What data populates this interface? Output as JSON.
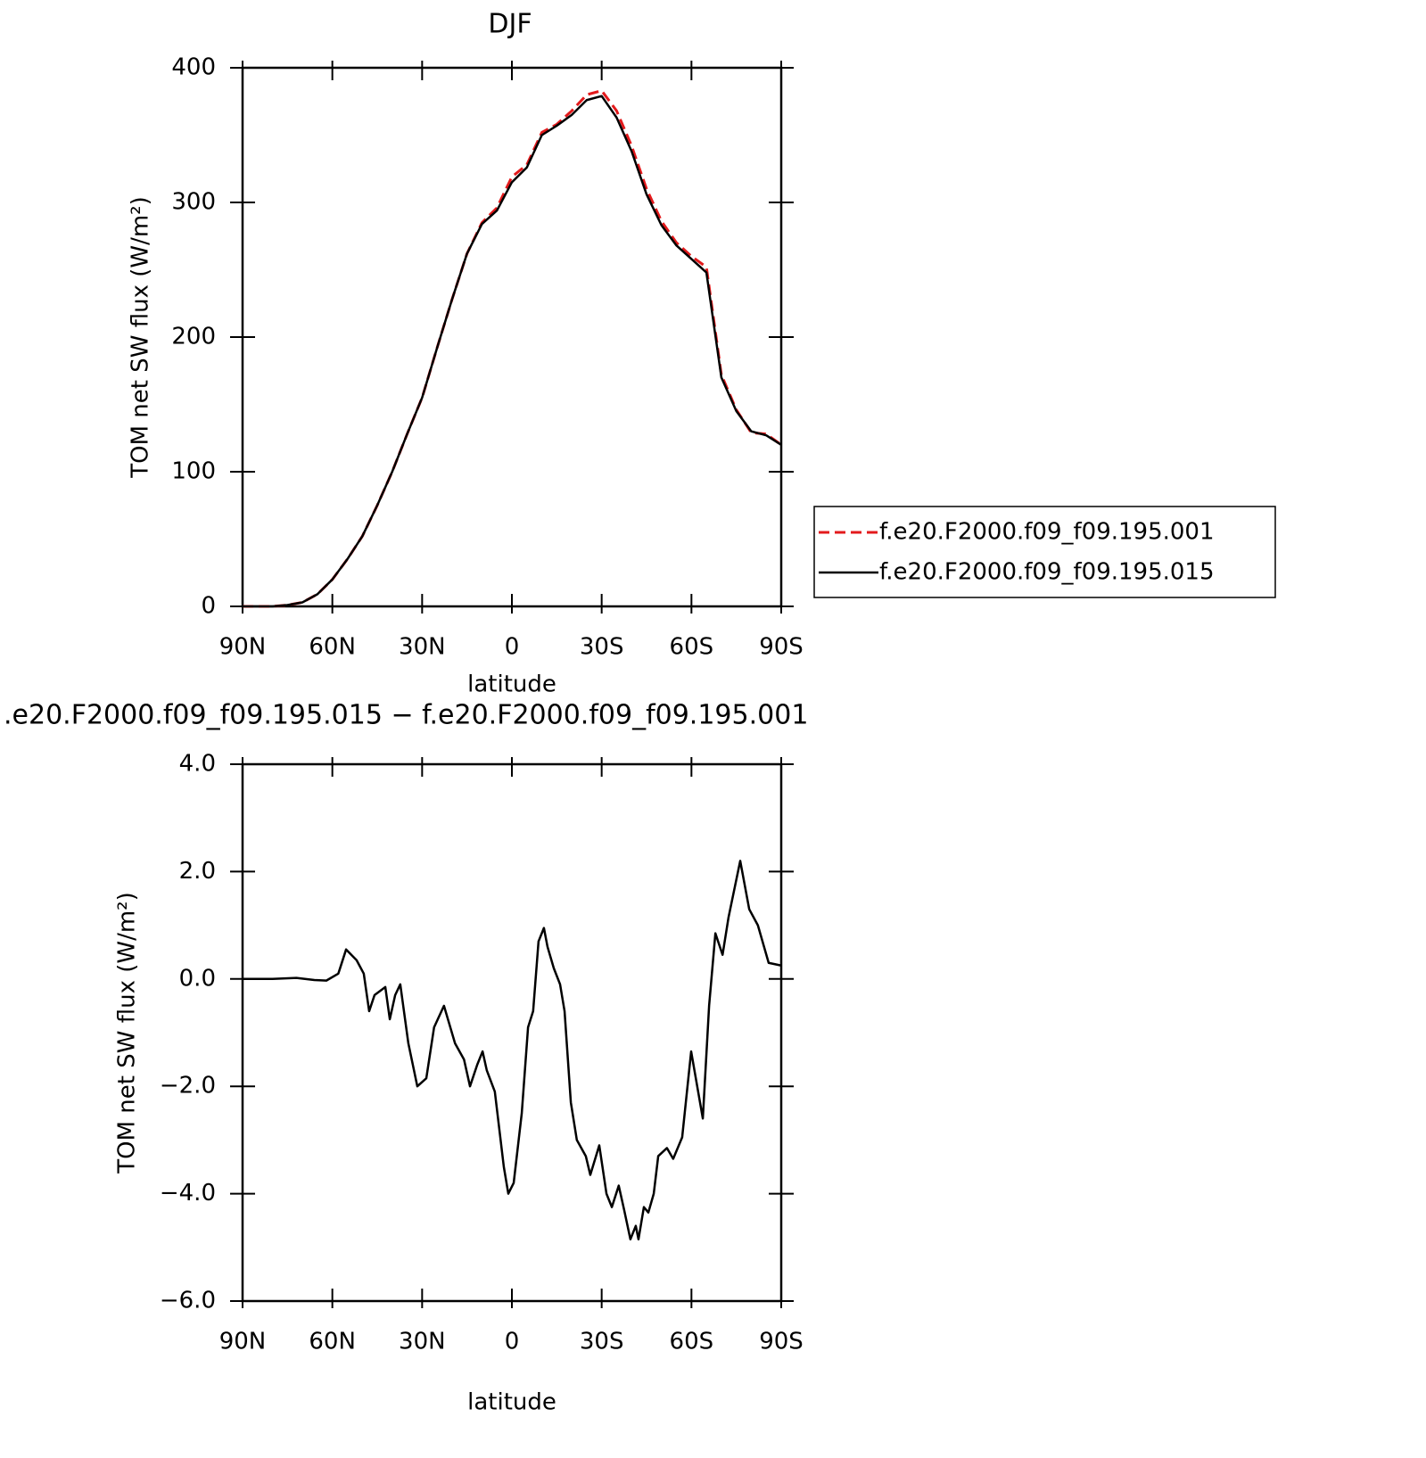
{
  "chart_data": [
    {
      "type": "line",
      "title": "DJF",
      "x_label": "latitude",
      "y_label": "TOM net SW flux (W/m²)",
      "x": [
        90,
        85,
        80,
        75,
        70,
        65,
        60,
        55,
        50,
        45,
        40,
        35,
        30,
        25,
        20,
        15,
        10,
        5,
        0,
        -5,
        -10,
        -15,
        -20,
        -25,
        -30,
        -35,
        -40,
        -45,
        -50,
        -55,
        -60,
        -65,
        -70,
        -75,
        -80,
        -85,
        -90
      ],
      "series": [
        {
          "name": "f.e20.F2000.f09_f09.195.001",
          "color": "#e31a1c",
          "dashed": true,
          "values": [
            0,
            0,
            0,
            1,
            3,
            9,
            20,
            35,
            52,
            75,
            100,
            128,
            155,
            192,
            228,
            262,
            285,
            296,
            319,
            328,
            352,
            358,
            368,
            380,
            383,
            368,
            342,
            310,
            286,
            270,
            260,
            252,
            172,
            146,
            129,
            128,
            120
          ]
        },
        {
          "name": "f.e20.F2000.f09_f09.195.015",
          "color": "#000000",
          "dashed": false,
          "values": [
            0,
            0,
            0,
            1,
            3,
            9,
            20,
            35,
            52,
            75,
            100,
            128,
            155,
            192,
            228,
            262,
            284,
            294,
            315,
            326,
            350,
            357,
            365,
            376,
            379,
            363,
            338,
            306,
            283,
            268,
            258,
            248,
            170,
            145,
            130,
            127,
            120
          ]
        }
      ],
      "xlim": [
        90,
        -90
      ],
      "xticks": [
        {
          "value": 90,
          "label": "90N"
        },
        {
          "value": 60,
          "label": "60N"
        },
        {
          "value": 30,
          "label": "30N"
        },
        0,
        {
          "value": -30,
          "label": "30S"
        },
        {
          "value": -60,
          "label": "60S"
        },
        {
          "value": -90,
          "label": "90S"
        }
      ],
      "ylim": [
        0,
        400
      ],
      "yticks": [
        0,
        100,
        200,
        300,
        400
      ]
    },
    {
      "type": "line",
      "title": ".e20.F2000.f09_f09.195.015 − f.e20.F2000.f09_f09.195.001",
      "x_label": "latitude",
      "y_label": "TOM net SW flux (W/m²)",
      "x": [
        90,
        80,
        72,
        66,
        62,
        58,
        55.4,
        51.9,
        49.5,
        47.7,
        45.9,
        42.3,
        40.8,
        39,
        37.3,
        34.6,
        31.6,
        28.6,
        26,
        22.7,
        19,
        16,
        14,
        11.6,
        9.8,
        8.4,
        5.7,
        2.7,
        1.2,
        -0.6,
        -3.3,
        -5.4,
        -7.1,
        -8.9,
        -10.7,
        -11.9,
        -14,
        -16.1,
        -17.6,
        -19.7,
        -21.7,
        -24.7,
        -26.2,
        -29.2,
        -31.6,
        -33.4,
        -35.7,
        -37.5,
        -39.6,
        -41.4,
        -42.3,
        -44.1,
        -45.6,
        -47.4,
        -48.9,
        -51.8,
        -53.9,
        -56.9,
        -59.9,
        -63.8,
        -65.9,
        -68,
        -70.4,
        -72.4,
        -76.3,
        -79.3,
        -82.2,
        -85.8,
        -90
      ],
      "series": [
        {
          "color": "#000000",
          "dashed": false,
          "values": [
            0,
            0,
            0.02,
            -0.02,
            -0.03,
            0.1,
            0.55,
            0.35,
            0.1,
            -0.6,
            -0.3,
            -0.15,
            -0.75,
            -0.3,
            -0.1,
            -1.2,
            -2.0,
            -1.85,
            -0.9,
            -0.5,
            -1.2,
            -1.5,
            -2.0,
            -1.6,
            -1.35,
            -1.7,
            -2.1,
            -3.5,
            -4.0,
            -3.8,
            -2.5,
            -0.9,
            -0.6,
            0.7,
            0.95,
            0.6,
            0.2,
            -0.1,
            -0.6,
            -2.3,
            -3.0,
            -3.3,
            -3.65,
            -3.1,
            -4.0,
            -4.25,
            -3.85,
            -4.3,
            -4.85,
            -4.6,
            -4.85,
            -4.25,
            -4.35,
            -4.0,
            -3.3,
            -3.15,
            -3.35,
            -2.95,
            -1.35,
            -2.6,
            -0.5,
            0.85,
            0.45,
            1.15,
            2.2,
            1.3,
            1.0,
            0.3,
            0.25
          ]
        }
      ],
      "xlim": [
        90,
        -90
      ],
      "xticks": [
        {
          "value": 90,
          "label": "90N"
        },
        {
          "value": 60,
          "label": "60N"
        },
        {
          "value": 30,
          "label": "30N"
        },
        0,
        {
          "value": -30,
          "label": "30S"
        },
        {
          "value": -60,
          "label": "60S"
        },
        {
          "value": -90,
          "label": "90S"
        }
      ],
      "ylim": [
        -6,
        4
      ],
      "yticks": [
        {
          "value": -6,
          "label": "−6.0"
        },
        {
          "value": -4,
          "label": "−4.0"
        },
        {
          "value": -2,
          "label": "−2.0"
        },
        {
          "value": 0,
          "label": "0.0"
        },
        {
          "value": 2,
          "label": "2.0"
        },
        {
          "value": 4,
          "label": "4.0"
        }
      ]
    }
  ]
}
